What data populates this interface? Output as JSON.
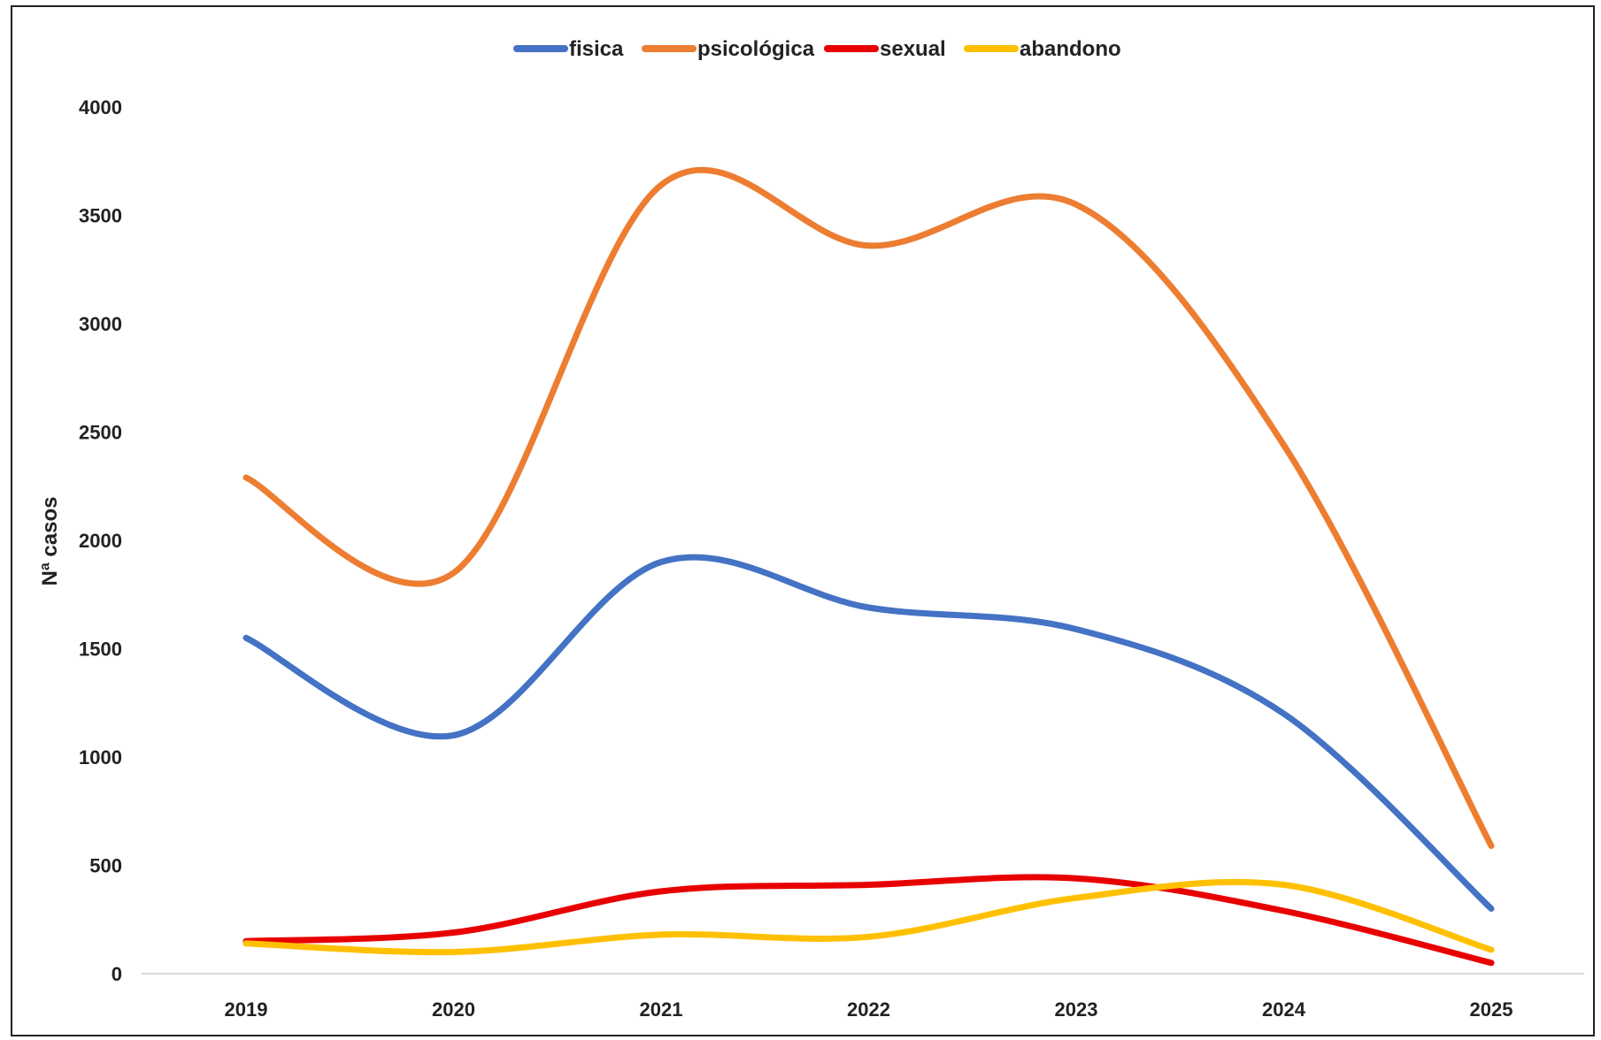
{
  "chart_data": {
    "type": "line",
    "smooth": true,
    "categories": [
      "2019",
      "2020",
      "2021",
      "2022",
      "2023",
      "2024",
      "2025"
    ],
    "series": [
      {
        "name": "fisica",
        "color": "#4472C4",
        "values": [
          1550,
          1100,
          1900,
          1690,
          1590,
          1200,
          300
        ]
      },
      {
        "name": "psicológica",
        "color": "#ED7D31",
        "values": [
          2290,
          1850,
          3640,
          3360,
          3550,
          2440,
          590
        ]
      },
      {
        "name": "sexual",
        "color": "#E80000",
        "values": [
          150,
          190,
          380,
          410,
          440,
          290,
          50
        ]
      },
      {
        "name": "abandono",
        "color": "#FFC000",
        "values": [
          140,
          100,
          180,
          170,
          350,
          410,
          110
        ]
      }
    ],
    "title": "",
    "xlabel": "",
    "ylabel": "Nª casos",
    "ylim": [
      0,
      4000
    ],
    "yticks": [
      "0",
      "500",
      "1000",
      "1500",
      "2000",
      "2500",
      "3000",
      "3500",
      "4000"
    ],
    "grid": false,
    "legend_position": "top"
  }
}
